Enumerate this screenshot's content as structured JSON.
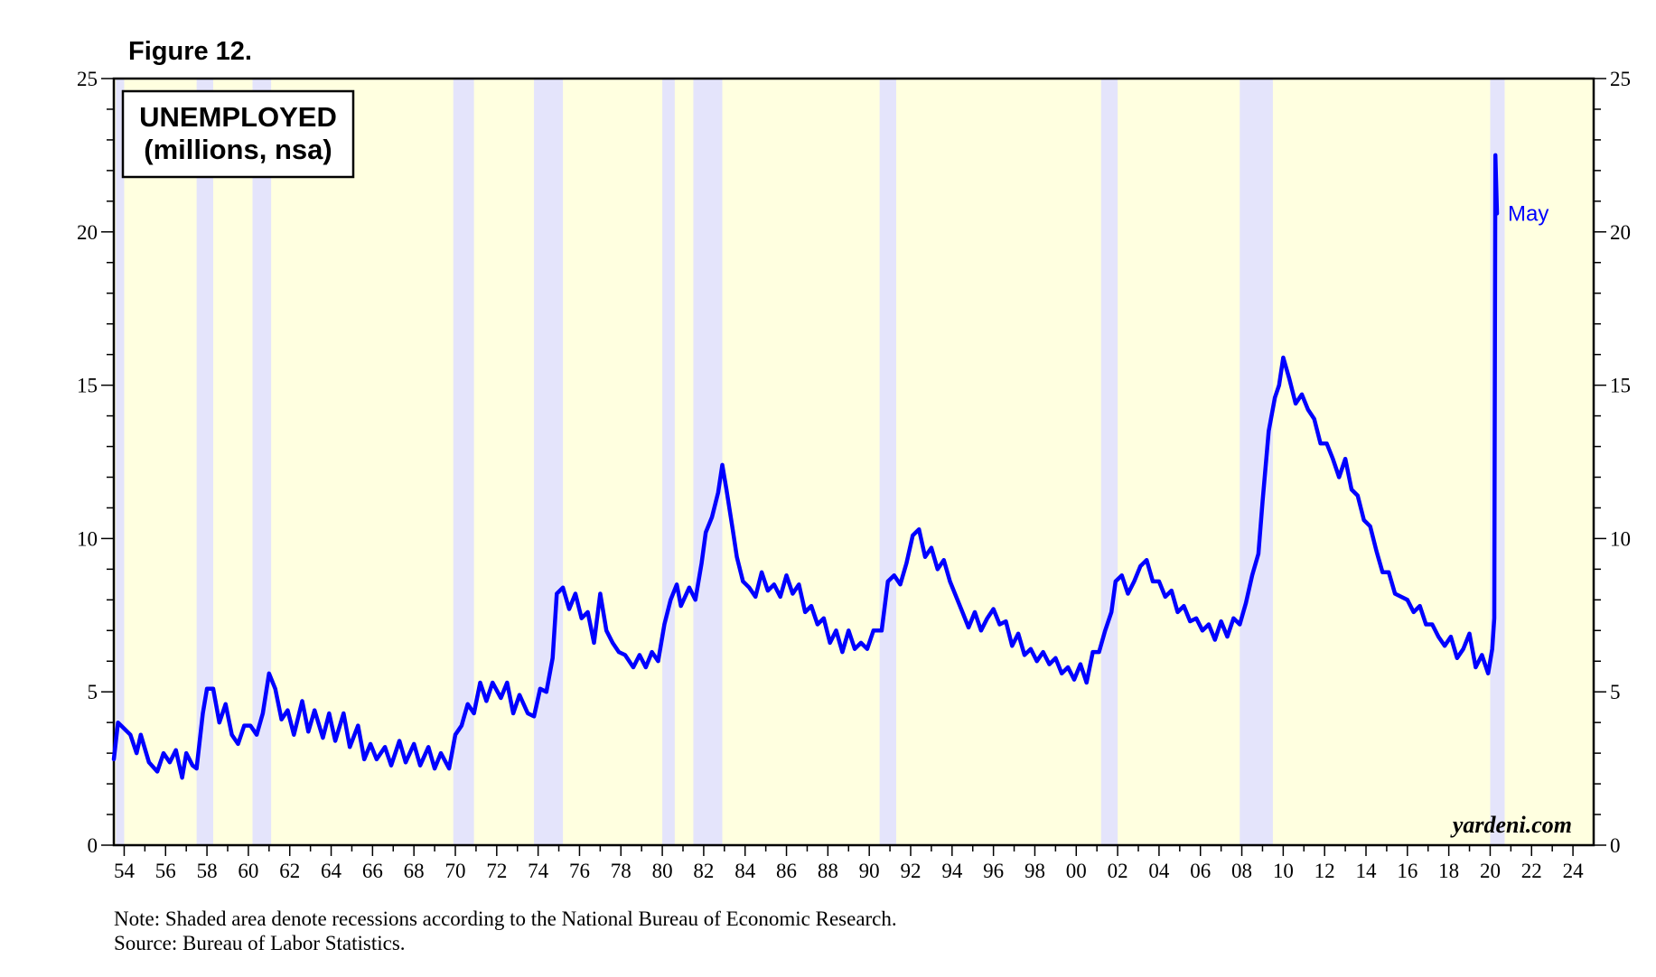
{
  "figure_label": "Figure 12.",
  "note": "Note: Shaded area denote recessions according to the National Bureau of Economic Research.",
  "source": "Source: Bureau of Labor Statistics.",
  "watermark": "yardeni.com",
  "colors": {
    "plot_background": "#ffffe0",
    "recession_band": "#e4e4fb",
    "series_line": "#0000ff",
    "axis": "#000000"
  },
  "chart_data": {
    "type": "line",
    "title_lines": [
      "UNEMPLOYED",
      "(millions, nsa)"
    ],
    "ylim": [
      0,
      25
    ],
    "yticks": [
      0,
      5,
      10,
      15,
      20,
      25
    ],
    "yticks_right": [
      0,
      5,
      10,
      15,
      20,
      25
    ],
    "xlim": [
      1953.5,
      2025
    ],
    "xtick_labels": [
      {
        "year": 1954,
        "label": "54"
      },
      {
        "year": 1956,
        "label": "56"
      },
      {
        "year": 1958,
        "label": "58"
      },
      {
        "year": 1960,
        "label": "60"
      },
      {
        "year": 1962,
        "label": "62"
      },
      {
        "year": 1964,
        "label": "64"
      },
      {
        "year": 1966,
        "label": "66"
      },
      {
        "year": 1968,
        "label": "68"
      },
      {
        "year": 1970,
        "label": "70"
      },
      {
        "year": 1972,
        "label": "72"
      },
      {
        "year": 1974,
        "label": "74"
      },
      {
        "year": 1976,
        "label": "76"
      },
      {
        "year": 1978,
        "label": "78"
      },
      {
        "year": 1980,
        "label": "80"
      },
      {
        "year": 1982,
        "label": "82"
      },
      {
        "year": 1984,
        "label": "84"
      },
      {
        "year": 1986,
        "label": "86"
      },
      {
        "year": 1988,
        "label": "88"
      },
      {
        "year": 1990,
        "label": "90"
      },
      {
        "year": 1992,
        "label": "92"
      },
      {
        "year": 1994,
        "label": "94"
      },
      {
        "year": 1996,
        "label": "96"
      },
      {
        "year": 1998,
        "label": "98"
      },
      {
        "year": 2000,
        "label": "00"
      },
      {
        "year": 2002,
        "label": "02"
      },
      {
        "year": 2004,
        "label": "04"
      },
      {
        "year": 2006,
        "label": "06"
      },
      {
        "year": 2008,
        "label": "08"
      },
      {
        "year": 2010,
        "label": "10"
      },
      {
        "year": 2012,
        "label": "12"
      },
      {
        "year": 2014,
        "label": "14"
      },
      {
        "year": 2016,
        "label": "16"
      },
      {
        "year": 2018,
        "label": "18"
      },
      {
        "year": 2020,
        "label": "20"
      },
      {
        "year": 2022,
        "label": "22"
      },
      {
        "year": 2024,
        "label": "24"
      }
    ],
    "recessions": [
      [
        1953.6,
        1954.0
      ],
      [
        1957.5,
        1958.3
      ],
      [
        1960.2,
        1961.1
      ],
      [
        1969.9,
        1970.9
      ],
      [
        1973.8,
        1975.2
      ],
      [
        1980.0,
        1980.6
      ],
      [
        1981.5,
        1982.9
      ],
      [
        1990.5,
        1991.3
      ],
      [
        2001.2,
        2002.0
      ],
      [
        2007.9,
        2009.5
      ],
      [
        2020.0,
        2020.7
      ]
    ],
    "series": [
      {
        "name": "Unemployed (millions, nsa)",
        "points": [
          [
            1953.5,
            2.8
          ],
          [
            1953.7,
            4.0
          ],
          [
            1954.0,
            3.8
          ],
          [
            1954.3,
            3.6
          ],
          [
            1954.6,
            3.0
          ],
          [
            1954.8,
            3.6
          ],
          [
            1955.2,
            2.7
          ],
          [
            1955.6,
            2.4
          ],
          [
            1955.9,
            3.0
          ],
          [
            1956.2,
            2.7
          ],
          [
            1956.5,
            3.1
          ],
          [
            1956.8,
            2.2
          ],
          [
            1957.0,
            3.0
          ],
          [
            1957.3,
            2.6
          ],
          [
            1957.5,
            2.5
          ],
          [
            1957.8,
            4.3
          ],
          [
            1958.0,
            5.1
          ],
          [
            1958.3,
            5.1
          ],
          [
            1958.6,
            4.0
          ],
          [
            1958.9,
            4.6
          ],
          [
            1959.2,
            3.6
          ],
          [
            1959.5,
            3.3
          ],
          [
            1959.8,
            3.9
          ],
          [
            1960.1,
            3.9
          ],
          [
            1960.4,
            3.6
          ],
          [
            1960.7,
            4.3
          ],
          [
            1961.0,
            5.6
          ],
          [
            1961.3,
            5.1
          ],
          [
            1961.6,
            4.1
          ],
          [
            1961.9,
            4.4
          ],
          [
            1962.2,
            3.6
          ],
          [
            1962.6,
            4.7
          ],
          [
            1962.9,
            3.7
          ],
          [
            1963.2,
            4.4
          ],
          [
            1963.6,
            3.5
          ],
          [
            1963.9,
            4.3
          ],
          [
            1964.2,
            3.4
          ],
          [
            1964.6,
            4.3
          ],
          [
            1964.9,
            3.2
          ],
          [
            1965.3,
            3.9
          ],
          [
            1965.6,
            2.8
          ],
          [
            1965.9,
            3.3
          ],
          [
            1966.2,
            2.8
          ],
          [
            1966.6,
            3.2
          ],
          [
            1966.9,
            2.6
          ],
          [
            1967.3,
            3.4
          ],
          [
            1967.6,
            2.7
          ],
          [
            1968.0,
            3.3
          ],
          [
            1968.3,
            2.6
          ],
          [
            1968.7,
            3.2
          ],
          [
            1969.0,
            2.5
          ],
          [
            1969.3,
            3.0
          ],
          [
            1969.7,
            2.5
          ],
          [
            1970.0,
            3.6
          ],
          [
            1970.3,
            3.9
          ],
          [
            1970.6,
            4.6
          ],
          [
            1970.9,
            4.3
          ],
          [
            1971.2,
            5.3
          ],
          [
            1971.5,
            4.7
          ],
          [
            1971.8,
            5.3
          ],
          [
            1972.2,
            4.8
          ],
          [
            1972.5,
            5.3
          ],
          [
            1972.8,
            4.3
          ],
          [
            1973.1,
            4.9
          ],
          [
            1973.5,
            4.3
          ],
          [
            1973.8,
            4.2
          ],
          [
            1974.1,
            5.1
          ],
          [
            1974.4,
            5.0
          ],
          [
            1974.7,
            6.1
          ],
          [
            1974.9,
            8.2
          ],
          [
            1975.2,
            8.4
          ],
          [
            1975.5,
            7.7
          ],
          [
            1975.8,
            8.2
          ],
          [
            1976.1,
            7.4
          ],
          [
            1976.4,
            7.6
          ],
          [
            1976.7,
            6.6
          ],
          [
            1977.0,
            8.2
          ],
          [
            1977.3,
            7.0
          ],
          [
            1977.6,
            6.6
          ],
          [
            1977.9,
            6.3
          ],
          [
            1978.2,
            6.2
          ],
          [
            1978.6,
            5.8
          ],
          [
            1978.9,
            6.2
          ],
          [
            1979.2,
            5.8
          ],
          [
            1979.5,
            6.3
          ],
          [
            1979.8,
            6.0
          ],
          [
            1980.1,
            7.2
          ],
          [
            1980.4,
            8.0
          ],
          [
            1980.7,
            8.5
          ],
          [
            1980.9,
            7.8
          ],
          [
            1981.3,
            8.4
          ],
          [
            1981.6,
            8.0
          ],
          [
            1981.9,
            9.2
          ],
          [
            1982.1,
            10.2
          ],
          [
            1982.4,
            10.7
          ],
          [
            1982.7,
            11.5
          ],
          [
            1982.9,
            12.4
          ],
          [
            1983.1,
            11.6
          ],
          [
            1983.4,
            10.3
          ],
          [
            1983.6,
            9.4
          ],
          [
            1983.9,
            8.6
          ],
          [
            1984.2,
            8.4
          ],
          [
            1984.5,
            8.1
          ],
          [
            1984.8,
            8.9
          ],
          [
            1985.1,
            8.3
          ],
          [
            1985.4,
            8.5
          ],
          [
            1985.7,
            8.1
          ],
          [
            1986.0,
            8.8
          ],
          [
            1986.3,
            8.2
          ],
          [
            1986.6,
            8.5
          ],
          [
            1986.9,
            7.6
          ],
          [
            1987.2,
            7.8
          ],
          [
            1987.5,
            7.2
          ],
          [
            1987.8,
            7.4
          ],
          [
            1988.1,
            6.6
          ],
          [
            1988.4,
            7.0
          ],
          [
            1988.7,
            6.3
          ],
          [
            1989.0,
            7.0
          ],
          [
            1989.3,
            6.4
          ],
          [
            1989.6,
            6.6
          ],
          [
            1989.9,
            6.4
          ],
          [
            1990.2,
            7.0
          ],
          [
            1990.6,
            7.0
          ],
          [
            1990.9,
            8.6
          ],
          [
            1991.2,
            8.8
          ],
          [
            1991.5,
            8.5
          ],
          [
            1991.8,
            9.2
          ],
          [
            1992.1,
            10.1
          ],
          [
            1992.4,
            10.3
          ],
          [
            1992.7,
            9.4
          ],
          [
            1993.0,
            9.7
          ],
          [
            1993.3,
            9.0
          ],
          [
            1993.6,
            9.3
          ],
          [
            1993.9,
            8.6
          ],
          [
            1994.2,
            8.1
          ],
          [
            1994.5,
            7.6
          ],
          [
            1994.8,
            7.1
          ],
          [
            1995.1,
            7.6
          ],
          [
            1995.4,
            7.0
          ],
          [
            1995.7,
            7.4
          ],
          [
            1996.0,
            7.7
          ],
          [
            1996.3,
            7.2
          ],
          [
            1996.6,
            7.3
          ],
          [
            1996.9,
            6.5
          ],
          [
            1997.2,
            6.9
          ],
          [
            1997.5,
            6.2
          ],
          [
            1997.8,
            6.4
          ],
          [
            1998.1,
            6.0
          ],
          [
            1998.4,
            6.3
          ],
          [
            1998.7,
            5.9
          ],
          [
            1999.0,
            6.1
          ],
          [
            1999.3,
            5.6
          ],
          [
            1999.6,
            5.8
          ],
          [
            1999.9,
            5.4
          ],
          [
            2000.2,
            5.9
          ],
          [
            2000.5,
            5.3
          ],
          [
            2000.8,
            6.3
          ],
          [
            2001.1,
            6.3
          ],
          [
            2001.4,
            7.0
          ],
          [
            2001.7,
            7.6
          ],
          [
            2001.9,
            8.6
          ],
          [
            2002.2,
            8.8
          ],
          [
            2002.5,
            8.2
          ],
          [
            2002.8,
            8.6
          ],
          [
            2003.1,
            9.1
          ],
          [
            2003.4,
            9.3
          ],
          [
            2003.7,
            8.6
          ],
          [
            2004.0,
            8.6
          ],
          [
            2004.3,
            8.1
          ],
          [
            2004.6,
            8.3
          ],
          [
            2004.9,
            7.6
          ],
          [
            2005.2,
            7.8
          ],
          [
            2005.5,
            7.3
          ],
          [
            2005.8,
            7.4
          ],
          [
            2006.1,
            7.0
          ],
          [
            2006.4,
            7.2
          ],
          [
            2006.7,
            6.7
          ],
          [
            2007.0,
            7.3
          ],
          [
            2007.3,
            6.8
          ],
          [
            2007.6,
            7.4
          ],
          [
            2007.9,
            7.2
          ],
          [
            2008.2,
            7.9
          ],
          [
            2008.5,
            8.8
          ],
          [
            2008.8,
            9.5
          ],
          [
            2009.0,
            11.2
          ],
          [
            2009.3,
            13.5
          ],
          [
            2009.6,
            14.6
          ],
          [
            2009.8,
            15.0
          ],
          [
            2010.0,
            15.9
          ],
          [
            2010.3,
            15.2
          ],
          [
            2010.6,
            14.4
          ],
          [
            2010.9,
            14.7
          ],
          [
            2011.2,
            14.2
          ],
          [
            2011.5,
            13.9
          ],
          [
            2011.8,
            13.1
          ],
          [
            2012.1,
            13.1
          ],
          [
            2012.4,
            12.6
          ],
          [
            2012.7,
            12.0
          ],
          [
            2013.0,
            12.6
          ],
          [
            2013.3,
            11.6
          ],
          [
            2013.6,
            11.4
          ],
          [
            2013.9,
            10.6
          ],
          [
            2014.2,
            10.4
          ],
          [
            2014.5,
            9.6
          ],
          [
            2014.8,
            8.9
          ],
          [
            2015.1,
            8.9
          ],
          [
            2015.4,
            8.2
          ],
          [
            2015.7,
            8.1
          ],
          [
            2016.0,
            8.0
          ],
          [
            2016.3,
            7.6
          ],
          [
            2016.6,
            7.8
          ],
          [
            2016.9,
            7.2
          ],
          [
            2017.2,
            7.2
          ],
          [
            2017.5,
            6.8
          ],
          [
            2017.8,
            6.5
          ],
          [
            2018.1,
            6.8
          ],
          [
            2018.4,
            6.1
          ],
          [
            2018.7,
            6.4
          ],
          [
            2019.0,
            6.9
          ],
          [
            2019.3,
            5.8
          ],
          [
            2019.6,
            6.2
          ],
          [
            2019.9,
            5.6
          ],
          [
            2020.1,
            6.4
          ],
          [
            2020.2,
            7.4
          ],
          [
            2020.25,
            22.5
          ],
          [
            2020.33,
            20.6
          ]
        ]
      }
    ],
    "annotations": [
      {
        "text": "May",
        "x": 2020.33,
        "y": 20.6
      }
    ]
  }
}
